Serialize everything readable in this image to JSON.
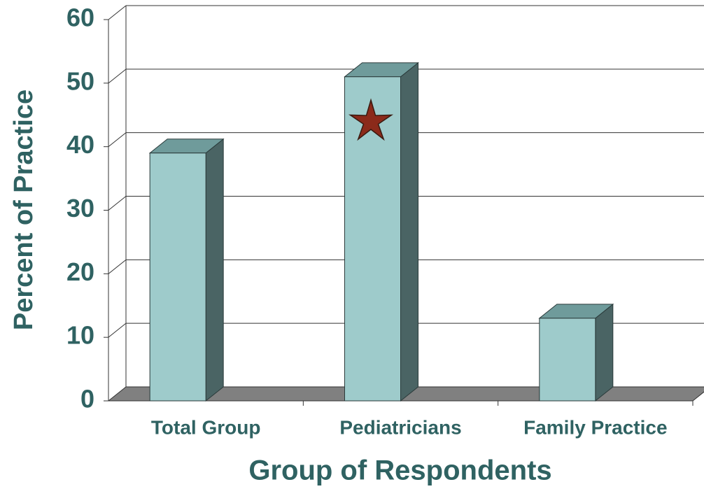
{
  "chart_data": {
    "type": "bar",
    "x_label": "Group of Respondents",
    "y_label": "Percent of Practice",
    "categories": [
      "Total Group",
      "Pediatricians",
      "Family Practice"
    ],
    "values": [
      39,
      51,
      13
    ],
    "color": "#9ecbcb",
    "ylim": [
      0,
      60
    ],
    "yticks": [
      0,
      10,
      20,
      30,
      40,
      50,
      60
    ],
    "grid": true
  }
}
